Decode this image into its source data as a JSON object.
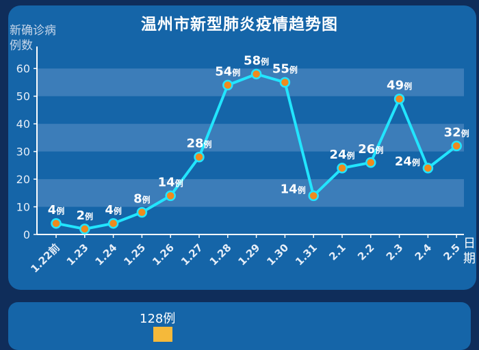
{
  "chart_data": {
    "type": "line",
    "title": "温州市新型肺炎疫情趋势图",
    "ylabel": "新确诊病例数",
    "xlabel": "日期",
    "unit": "例",
    "categories": [
      "1.22前",
      "1.23",
      "1.24",
      "1.25",
      "1.26",
      "1.27",
      "1.28",
      "1.29",
      "1.30",
      "1.31",
      "2.1",
      "2.2",
      "2.3",
      "2.4",
      "2.5"
    ],
    "values": [
      4,
      2,
      4,
      8,
      14,
      28,
      54,
      58,
      55,
      14,
      24,
      26,
      49,
      24,
      32
    ],
    "ylim": [
      0,
      65
    ],
    "yticks": [
      0,
      10,
      20,
      30,
      40,
      50,
      60
    ],
    "grid": true,
    "colors": {
      "line": "#22e5ff",
      "marker": "#f08a1c",
      "band": "#4a86bf"
    }
  },
  "bottom_chart": {
    "first_value_label": "128例",
    "bar_color": "#f5b93a"
  }
}
